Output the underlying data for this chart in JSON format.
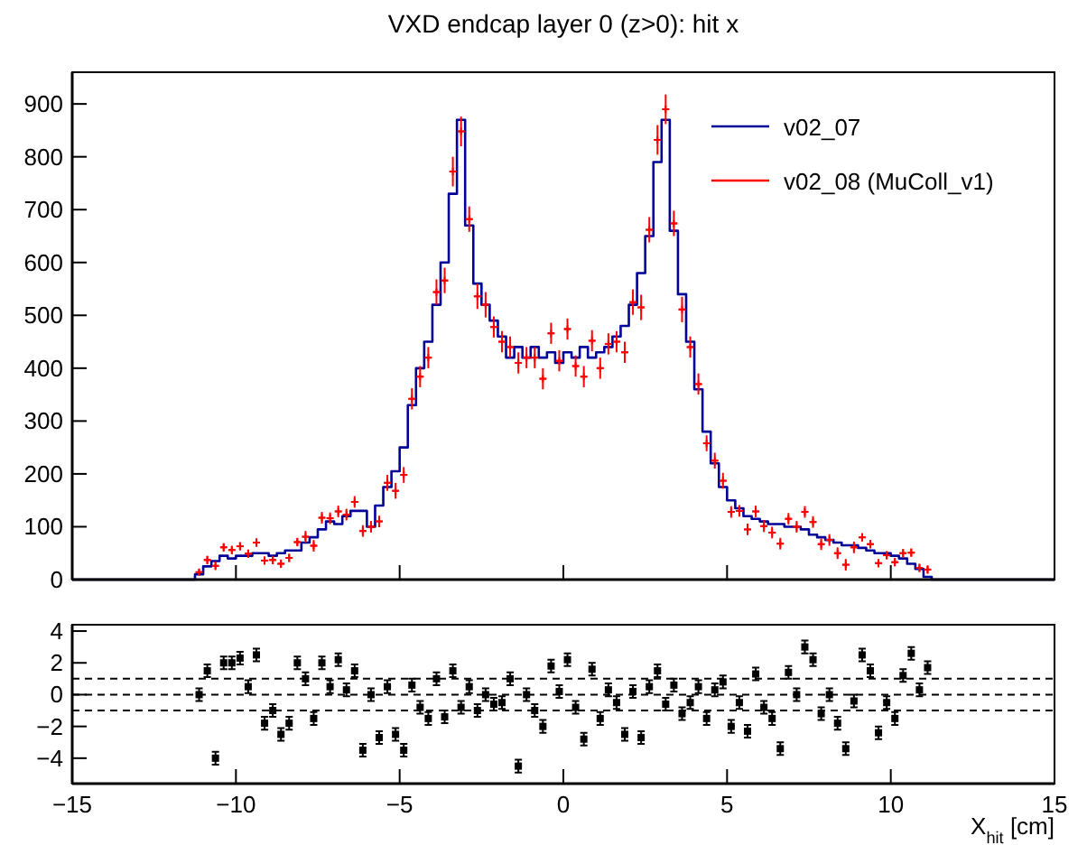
{
  "chart_data": [
    {
      "type": "step",
      "title": "VXD endcap layer 0 (z>0): hit x",
      "xlim": [
        -15,
        15
      ],
      "xticks": [
        {
          "value": -15,
          "label": null
        },
        {
          "value": -10,
          "label": null
        },
        {
          "value": -5,
          "label": null
        },
        {
          "value": 0,
          "label": null
        },
        {
          "value": 5,
          "label": null
        },
        {
          "value": 10,
          "label": null
        },
        {
          "value": 15,
          "label": null
        }
      ],
      "ylim": [
        0,
        960
      ],
      "yticks": [
        0,
        100,
        200,
        300,
        400,
        500,
        600,
        700,
        800,
        900
      ],
      "tick_labels": "y",
      "grid": false,
      "legend": "top right",
      "series": [
        {
          "name": "v02_07",
          "color": "#000099",
          "x": [
            -15,
            -11.375,
            -11.125,
            -10.875,
            -10.625,
            -10.375,
            -10.125,
            -9.875,
            -9.625,
            -9.375,
            -9.125,
            -8.875,
            -8.625,
            -8.375,
            -8.125,
            -7.875,
            -7.625,
            -7.375,
            -7.125,
            -6.875,
            -6.625,
            -6.375,
            -6.125,
            -5.875,
            -5.625,
            -5.375,
            -5.125,
            -4.875,
            -4.625,
            -4.375,
            -4.125,
            -3.875,
            -3.625,
            -3.375,
            -3.125,
            -2.875,
            -2.625,
            -2.375,
            -2.125,
            -1.875,
            -1.625,
            -1.375,
            -1.125,
            -0.875,
            -0.625,
            -0.375,
            -0.125,
            0.125,
            0.375,
            0.625,
            0.875,
            1.125,
            1.375,
            1.625,
            1.875,
            2.125,
            2.375,
            2.625,
            2.875,
            3.125,
            3.375,
            3.625,
            3.875,
            4.125,
            4.375,
            4.625,
            4.875,
            5.125,
            5.375,
            5.625,
            5.875,
            6.125,
            6.375,
            6.625,
            6.875,
            7.125,
            7.375,
            7.625,
            7.875,
            8.125,
            8.375,
            8.625,
            8.875,
            9.125,
            9.375,
            9.625,
            9.875,
            10.125,
            10.375,
            10.625,
            10.875,
            11.125,
            11.375,
            15
          ],
          "values": [
            0,
            0,
            10,
            25,
            35,
            45,
            40,
            45,
            45,
            50,
            50,
            45,
            50,
            55,
            55,
            70,
            80,
            95,
            110,
            105,
            120,
            130,
            130,
            100,
            140,
            175,
            205,
            250,
            330,
            400,
            450,
            520,
            600,
            730,
            870,
            670,
            560,
            520,
            490,
            460,
            420,
            440,
            420,
            440,
            420,
            430,
            410,
            430,
            420,
            440,
            420,
            430,
            440,
            460,
            480,
            520,
            580,
            650,
            790,
            870,
            660,
            540,
            450,
            360,
            280,
            220,
            175,
            150,
            135,
            120,
            115,
            110,
            105,
            105,
            100,
            100,
            95,
            85,
            80,
            75,
            70,
            65,
            65,
            60,
            55,
            50,
            50,
            45,
            40,
            30,
            20,
            5,
            0,
            0
          ]
        },
        {
          "name": "v02_08 (MuColl_v1)",
          "type": "scatter",
          "marker": "cross",
          "color": "#ff0000",
          "x": [
            -11.125,
            -10.875,
            -10.625,
            -10.375,
            -10.125,
            -9.875,
            -9.625,
            -9.375,
            -9.125,
            -8.875,
            -8.625,
            -8.375,
            -8.125,
            -7.875,
            -7.625,
            -7.375,
            -7.125,
            -6.875,
            -6.625,
            -6.375,
            -6.125,
            -5.875,
            -5.625,
            -5.375,
            -5.125,
            -4.875,
            -4.625,
            -4.375,
            -4.125,
            -3.875,
            -3.625,
            -3.375,
            -3.125,
            -2.875,
            -2.625,
            -2.375,
            -2.125,
            -1.875,
            -1.625,
            -1.375,
            -1.125,
            -0.875,
            -0.625,
            -0.375,
            -0.125,
            0.125,
            0.375,
            0.625,
            0.875,
            1.125,
            1.375,
            1.625,
            1.875,
            2.125,
            2.375,
            2.625,
            2.875,
            3.125,
            3.375,
            3.625,
            3.875,
            4.125,
            4.375,
            4.625,
            4.875,
            5.125,
            5.375,
            5.625,
            5.875,
            6.125,
            6.375,
            6.625,
            6.875,
            7.125,
            7.375,
            7.625,
            7.875,
            8.125,
            8.375,
            8.625,
            8.875,
            9.125,
            9.375,
            9.625,
            9.875,
            10.125,
            10.375,
            10.625,
            10.875,
            11.125
          ],
          "values": [
            14,
            37,
            26,
            61,
            56,
            63,
            49,
            70,
            36,
            37,
            30,
            41,
            71,
            81,
            64,
            117,
            116,
            129,
            123,
            147,
            92,
            100,
            110,
            183,
            168,
            198,
            342,
            384,
            420,
            544,
            566,
            772,
            848,
            682,
            536,
            520,
            478,
            450,
            440,
            410,
            420,
            420,
            380,
            466,
            414,
            474,
            404,
            384,
            452,
            400,
            446,
            450,
            430,
            525,
            515,
            662,
            832,
            890,
            674,
            511,
            440,
            370,
            258,
            225,
            187,
            128,
            130,
            95,
            129,
            101,
            89,
            68,
            115,
            100,
            128,
            109,
            67,
            75,
            50,
            28,
            61,
            80,
            67,
            31,
            46,
            33,
            50,
            51,
            22,
            19
          ],
          "errors": [
            6,
            8,
            8,
            8,
            8,
            8,
            8,
            8,
            8,
            8,
            8,
            8,
            8,
            11,
            11,
            11,
            11,
            11,
            11,
            11,
            11,
            11,
            11,
            15,
            15,
            15,
            20,
            20,
            20,
            24,
            24,
            28,
            28,
            24,
            24,
            24,
            20,
            20,
            20,
            20,
            20,
            20,
            20,
            20,
            20,
            20,
            20,
            20,
            20,
            20,
            20,
            20,
            20,
            24,
            24,
            24,
            28,
            28,
            24,
            24,
            20,
            20,
            15,
            15,
            15,
            11,
            11,
            11,
            11,
            11,
            11,
            11,
            11,
            11,
            11,
            11,
            11,
            11,
            11,
            11,
            11,
            8,
            8,
            8,
            8,
            8,
            8,
            8,
            8,
            8
          ],
          "xerrors": [
            0.1,
            0.1,
            0.1,
            0.1,
            0.1,
            0.1,
            0.1,
            0.1,
            0.1,
            0.1,
            0.1,
            0.1,
            0.1,
            0.1,
            0.1,
            0.1,
            0.1,
            0.1,
            0.1,
            0.1,
            0.1,
            0.1,
            0.1,
            0.1,
            0.1,
            0.1,
            0.1,
            0.1,
            0.1,
            0.1,
            0.1,
            0.1,
            0.1,
            0.1,
            0.1,
            0.1,
            0.1,
            0.1,
            0.1,
            0.1,
            0.1,
            0.1,
            0.1,
            0.1,
            0.1,
            0.1,
            0.1,
            0.1,
            0.1,
            0.1,
            0.1,
            0.1,
            0.1,
            0.1,
            0.1,
            0.1,
            0.1,
            0.1,
            0.1,
            0.1,
            0.1,
            0.1,
            0.1,
            0.1,
            0.1,
            0.1,
            0.1,
            0.1,
            0.1,
            0.1,
            0.1,
            0.1,
            0.1,
            0.1,
            0.1,
            0.1,
            0.1,
            0.1,
            0.1,
            0.1,
            0.1,
            0.1,
            0.1,
            0.1,
            0.1,
            0.1,
            0.1,
            0.1,
            0.1,
            0.1
          ]
        }
      ]
    },
    {
      "type": "scatter",
      "xlabel": "X$_{hit}$ [cm]",
      "xlim": [
        -15,
        15
      ],
      "xticks": [
        {
          "value": -15,
          "label": "−15"
        },
        {
          "value": -10,
          "label": "−10"
        },
        {
          "value": -5,
          "label": "−5"
        },
        0,
        5,
        10,
        15
      ],
      "ylim": [
        -5.6,
        4.4
      ],
      "yticks": [
        {
          "value": -4,
          "label": "−4"
        },
        {
          "value": -2,
          "label": "−2"
        },
        0,
        2,
        4
      ],
      "grid": false,
      "marker": "square",
      "ref_lines": [
        {
          "axis": "y",
          "value": 1,
          "line_style": "dashed"
        },
        {
          "axis": "y",
          "value": 0,
          "line_style": "dashed"
        },
        {
          "axis": "y",
          "value": -1,
          "line_style": "dashed"
        }
      ],
      "series": [
        {
          "color": "#000000",
          "x": [
            -11.125,
            -10.875,
            -10.625,
            -10.375,
            -10.125,
            -9.875,
            -9.625,
            -9.375,
            -9.125,
            -8.875,
            -8.625,
            -8.375,
            -8.125,
            -7.875,
            -7.625,
            -7.375,
            -7.125,
            -6.875,
            -6.625,
            -6.375,
            -6.125,
            -5.875,
            -5.625,
            -5.375,
            -5.125,
            -4.875,
            -4.625,
            -4.375,
            -4.125,
            -3.875,
            -3.625,
            -3.375,
            -3.125,
            -2.875,
            -2.625,
            -2.375,
            -2.125,
            -1.875,
            -1.625,
            -1.375,
            -1.125,
            -0.875,
            -0.625,
            -0.375,
            -0.125,
            0.125,
            0.375,
            0.625,
            0.875,
            1.125,
            1.375,
            1.625,
            1.875,
            2.125,
            2.375,
            2.625,
            2.875,
            3.125,
            3.375,
            3.625,
            3.875,
            4.125,
            4.375,
            4.625,
            4.875,
            5.125,
            5.375,
            5.625,
            5.875,
            6.125,
            6.375,
            6.625,
            6.875,
            7.125,
            7.375,
            7.625,
            7.875,
            8.125,
            8.375,
            8.625,
            8.875,
            9.125,
            9.375,
            9.625,
            9.875,
            10.125,
            10.375,
            10.625,
            10.875,
            11.125
          ],
          "values": [
            0,
            1.5,
            -4,
            2,
            2,
            2.3,
            0.5,
            2.5,
            -1.8,
            -1,
            -2.5,
            -1.8,
            2,
            1,
            -1.5,
            2,
            0.5,
            2.2,
            0.3,
            1.5,
            -3.5,
            0,
            -2.7,
            0.5,
            -2.5,
            -3.5,
            0.6,
            -0.8,
            -1.5,
            1,
            -1.4,
            1.5,
            -0.8,
            0.5,
            -1,
            0,
            -0.6,
            -0.5,
            1,
            -4.5,
            0,
            -1,
            -2,
            1.8,
            0.2,
            2.2,
            -0.8,
            -2.8,
            1.6,
            -1.5,
            0.3,
            -0.5,
            -2.5,
            0.2,
            -2.7,
            0.5,
            1.5,
            -0.6,
            0.6,
            -1.2,
            -0.5,
            0.5,
            -1.5,
            0.3,
            0.8,
            -2,
            -0.5,
            -2.3,
            1.3,
            -0.8,
            -1.5,
            -3.4,
            1.4,
            0,
            3,
            2.2,
            -1.2,
            0,
            -1.8,
            -3.4,
            -0.4,
            2.5,
            1.5,
            -2.4,
            -0.5,
            -1.5,
            1.2,
            2.6,
            0.3,
            1.7
          ],
          "errors": [
            0.4,
            0.4,
            0.4,
            0.4,
            0.4,
            0.4,
            0.4,
            0.4,
            0.4,
            0.4,
            0.4,
            0.4,
            0.4,
            0.4,
            0.4,
            0.4,
            0.4,
            0.4,
            0.4,
            0.4,
            0.4,
            0.4,
            0.4,
            0.4,
            0.4,
            0.4,
            0.4,
            0.4,
            0.4,
            0.4,
            0.4,
            0.4,
            0.4,
            0.4,
            0.4,
            0.4,
            0.4,
            0.4,
            0.4,
            0.4,
            0.4,
            0.4,
            0.4,
            0.4,
            0.4,
            0.4,
            0.4,
            0.4,
            0.4,
            0.4,
            0.4,
            0.4,
            0.4,
            0.4,
            0.4,
            0.4,
            0.4,
            0.4,
            0.4,
            0.4,
            0.4,
            0.4,
            0.4,
            0.4,
            0.4,
            0.4,
            0.4,
            0.4,
            0.4,
            0.4,
            0.4,
            0.4,
            0.4,
            0.4,
            0.4,
            0.4,
            0.4,
            0.4,
            0.4,
            0.4,
            0.4,
            0.4,
            0.4,
            0.4,
            0.4,
            0.4,
            0.4,
            0.4,
            0.4,
            0.4
          ]
        }
      ]
    }
  ]
}
